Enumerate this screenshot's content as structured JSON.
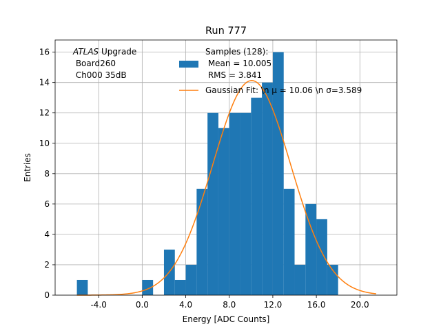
{
  "chart_data": {
    "type": "bar",
    "title": "Run 777",
    "xlabel": "Energy [ADC Counts]",
    "ylabel": "Entries",
    "xlim": [
      -8,
      23.4
    ],
    "ylim": [
      0,
      16.8
    ],
    "xticks": [
      -4,
      0,
      4,
      8,
      12,
      16,
      20
    ],
    "xtick_labels": [
      "-4.0",
      "0.0",
      "4.0",
      "8.0",
      "12.0",
      "16.0",
      "20.0"
    ],
    "yticks": [
      0,
      2,
      4,
      6,
      8,
      10,
      12,
      14,
      16
    ],
    "ytick_labels": [
      "0",
      "2",
      "4",
      "6",
      "8",
      "10",
      "12",
      "14",
      "16"
    ],
    "grid": true,
    "bar_color": "#1f77b4",
    "fit_color": "#ff7f0e",
    "bin_edges": [
      -6,
      -5,
      -4,
      -3,
      -2,
      -1,
      0,
      1,
      2,
      3,
      4,
      5,
      6,
      7,
      8,
      9,
      10,
      11,
      12,
      13,
      14,
      15,
      16,
      17,
      18,
      19,
      20,
      21,
      22
    ],
    "bin_counts": [
      1,
      0,
      0,
      0,
      0,
      0,
      1,
      0,
      3,
      1,
      2,
      7,
      12,
      11,
      12,
      12,
      13,
      14,
      16,
      7,
      2,
      6,
      5,
      2,
      0,
      0,
      0,
      0
    ],
    "fit": {
      "mu": 10.06,
      "sigma": 3.589,
      "amplitude": 14.13,
      "x_range": [
        -6,
        21.5
      ]
    },
    "annotation": {
      "italic": "ATLAS",
      "first_line_rest": " Upgrade",
      "lines": [
        " Board260",
        " Ch000 35dB"
      ]
    },
    "legend": {
      "position": "top-center",
      "histogram_lines": [
        "Samples (128):",
        " Mean = 10.005",
        " RMS = 3.841"
      ],
      "fit_label": "Gaussian Fit: \\n μ = 10.06 \\n σ=3.589"
    }
  }
}
